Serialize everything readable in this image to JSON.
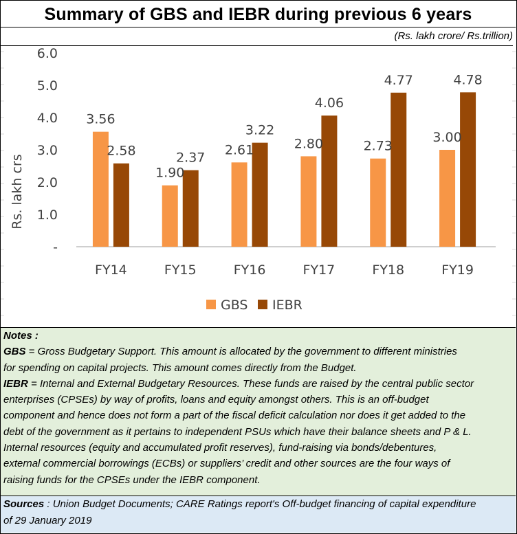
{
  "title": "Summary of GBS and IEBR during previous 6 years",
  "unit_note": "(Rs. lakh crore/ Rs.trillion)",
  "colors": {
    "gbs": "#f79646",
    "iebr": "#974806",
    "notes_bg": "#e3efdb",
    "sources_bg": "#dce9f5"
  },
  "chart_data": {
    "type": "bar",
    "title": "Summary of GBS and IEBR during previous 6 years",
    "xlabel": "",
    "ylabel": "Rs. lakh crs",
    "ylim": [
      0,
      6
    ],
    "yticks": [
      0,
      1,
      2,
      3,
      4,
      5,
      6
    ],
    "ytick_labels": [
      "-",
      "1.0",
      "2.0",
      "3.0",
      "4.0",
      "5.0",
      "6.0"
    ],
    "grid": false,
    "legend": "bottom",
    "categories": [
      "FY14",
      "FY15",
      "FY16",
      "FY17",
      "FY18",
      "FY19"
    ],
    "series": [
      {
        "name": "GBS",
        "values": [
          3.56,
          1.9,
          2.61,
          2.8,
          2.73,
          3.0
        ],
        "labels": [
          "3.56",
          "1.90",
          "2.61",
          "2.80",
          "2.73",
          "3.00"
        ]
      },
      {
        "name": "IEBR",
        "values": [
          2.58,
          2.37,
          3.22,
          4.06,
          4.77,
          4.78
        ],
        "labels": [
          "2.58",
          "2.37",
          "3.22",
          "4.06",
          "4.77",
          "4.78"
        ]
      }
    ]
  },
  "notes": {
    "heading": "Notes :",
    "gbs_term": "GBS",
    "gbs_lines": [
      " = Gross Budgetary Support.  This amount is allocated by the government to different ministries",
      "for spending on capital projects. This amount comes directly from the Budget."
    ],
    "iebr_term": "IEBR",
    "iebr_lines": [
      " = Internal and External Budgetary Resources.  These funds are raised by the central public sector",
      "enterprises (CPSEs) by way of profits, loans and equity amongst others. This is an off-budget",
      "component and hence does not form a part of the fiscal deficit calculation nor does it get added to the",
      "debt of the government as it pertains to independent PSUs which have their balance sheets and P & L.",
      "Internal resources (equity and accumulated profit reserves), fund-raising via bonds/debentures,",
      "external commercial borrowings (ECBs) or suppliers’ credit and other sources are the four ways of",
      "raising funds for the CPSEs under the IEBR component."
    ]
  },
  "sources": {
    "label": "Sources",
    "lines": [
      " : Union Budget Documents; CARE Ratings report's Off-budget financing of capital expenditure",
      "of 29 January 2019"
    ]
  }
}
